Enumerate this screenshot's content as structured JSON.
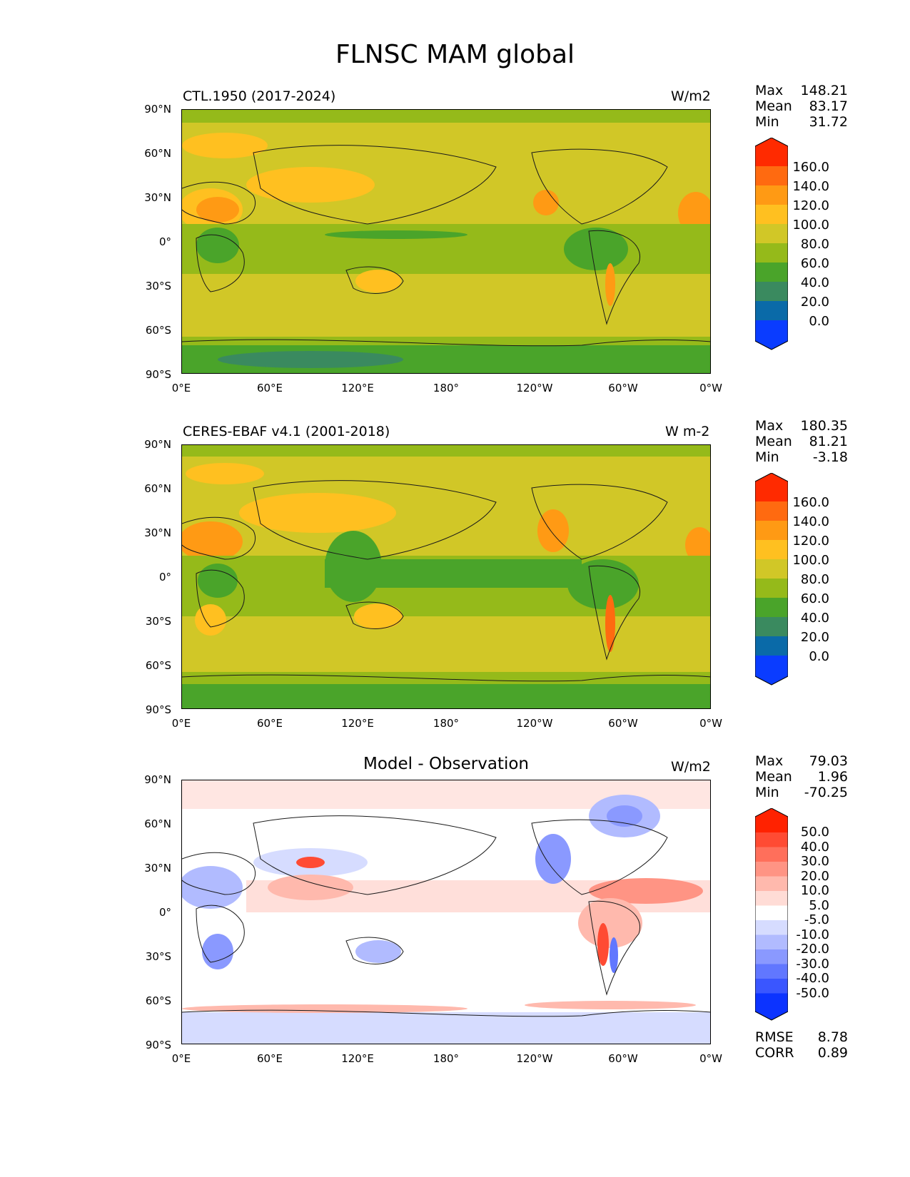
{
  "title": "FLNSC MAM global",
  "axes": {
    "lat_labels": [
      "90°N",
      "60°N",
      "30°N",
      "0°",
      "30°S",
      "60°S",
      "90°S"
    ],
    "lon_labels": [
      "0°E",
      "60°E",
      "120°E",
      "180°",
      "120°W",
      "60°W",
      "0°W"
    ]
  },
  "panels": [
    {
      "title": "CTL.1950 (2017-2024)",
      "units": "W/m2",
      "stats": {
        "max_label": "Max",
        "max": "148.21",
        "mean_label": "Mean",
        "mean": "83.17",
        "min_label": "Min",
        "min": "31.72"
      },
      "colorbar": {
        "labels": [
          "160.0",
          "140.0",
          "120.0",
          "100.0",
          "80.0",
          "60.0",
          "40.0",
          "20.0",
          "0.0"
        ],
        "colors": [
          "#ff2a00",
          "#ff6a10",
          "#ff9a14",
          "#ffc020",
          "#d1c727",
          "#95ba1a",
          "#4aa42a",
          "#3a8a5f",
          "#0a6aa8",
          "#0a3cff"
        ]
      }
    },
    {
      "title": "CERES-EBAF v4.1 (2001-2018)",
      "units": "W m-2",
      "stats": {
        "max_label": "Max",
        "max": "180.35",
        "mean_label": "Mean",
        "mean": "81.21",
        "min_label": "Min",
        "min": "-3.18"
      },
      "colorbar": {
        "labels": [
          "160.0",
          "140.0",
          "120.0",
          "100.0",
          "80.0",
          "60.0",
          "40.0",
          "20.0",
          "0.0"
        ],
        "colors": [
          "#ff2a00",
          "#ff6a10",
          "#ff9a14",
          "#ffc020",
          "#d1c727",
          "#95ba1a",
          "#4aa42a",
          "#3a8a5f",
          "#0a6aa8",
          "#0a3cff"
        ]
      }
    },
    {
      "title": "Model - Observation",
      "units": "W/m2",
      "stats": {
        "max_label": "Max",
        "max": "79.03",
        "mean_label": "Mean",
        "mean": "1.96",
        "min_label": "Min",
        "min": "-70.25"
      },
      "extra": {
        "rmse_label": "RMSE",
        "rmse": "8.78",
        "corr_label": "CORR",
        "corr": "0.89"
      },
      "colorbar": {
        "labels": [
          "50.0",
          "40.0",
          "30.0",
          "20.0",
          "10.0",
          "5.0",
          "-5.0",
          "-10.0",
          "-20.0",
          "-30.0",
          "-40.0",
          "-50.0"
        ],
        "colors": [
          "#ff2200",
          "#ff4b33",
          "#ff6f5b",
          "#ff9484",
          "#ffb9ad",
          "#ffdcd6",
          "#ffffff",
          "#d6dcff",
          "#b1bbff",
          "#8a99ff",
          "#6177ff",
          "#3a56ff",
          "#0c33ff"
        ]
      }
    }
  ]
}
